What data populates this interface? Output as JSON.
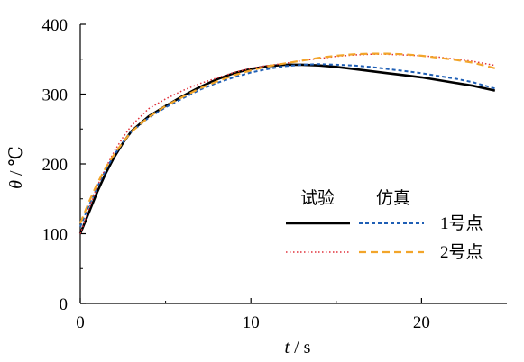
{
  "chart_data": {
    "type": "line",
    "xlabel_var": "t",
    "xlabel_unit": "s",
    "ylabel_var": "θ",
    "ylabel_unit": "℃",
    "xlim": [
      0,
      25
    ],
    "ylim": [
      0,
      400
    ],
    "xticks": [
      0,
      10,
      20
    ],
    "yticks": [
      0,
      100,
      200,
      300,
      400
    ],
    "grid": false,
    "legend": {
      "placement": "bottom-right",
      "col_headers": [
        "试验",
        "仿真"
      ],
      "row_labels": [
        "1号点",
        "2号点"
      ]
    },
    "series": [
      {
        "name": "试验 1号点",
        "color": "#000000",
        "style": "solid",
        "x": [
          0,
          0.5,
          1,
          1.5,
          2,
          2.5,
          3,
          4,
          5,
          6,
          7,
          8,
          9,
          10,
          11,
          12,
          13,
          14,
          15,
          16,
          17,
          18,
          19,
          20,
          21,
          22,
          23,
          24.3
        ],
        "y": [
          100,
          130,
          160,
          187,
          210,
          230,
          247,
          268,
          283,
          297,
          310,
          321,
          330,
          336,
          340,
          342,
          342,
          341,
          339,
          336,
          333,
          330,
          327,
          324,
          320,
          316,
          312,
          305
        ]
      },
      {
        "name": "仿真 1号点",
        "color": "#1f5fb5",
        "style": "dash",
        "x": [
          0,
          0.5,
          1,
          1.5,
          2,
          2.5,
          3,
          4,
          5,
          6,
          7,
          8,
          9,
          10,
          11,
          12,
          13,
          14,
          15,
          16,
          17,
          18,
          19,
          20,
          21,
          22,
          23,
          24.3
        ],
        "y": [
          110,
          140,
          167,
          192,
          213,
          231,
          246,
          266,
          281,
          294,
          306,
          316,
          324,
          331,
          336,
          340,
          342,
          343,
          342,
          341,
          339,
          336,
          333,
          330,
          326,
          322,
          317,
          308
        ]
      },
      {
        "name": "试验 2号点",
        "color": "#e0303a",
        "style": "dot",
        "x": [
          0,
          0.5,
          1,
          1.5,
          2,
          2.5,
          3,
          4,
          5,
          6,
          7,
          8,
          9,
          10,
          11,
          12,
          13,
          14,
          15,
          16,
          17,
          18,
          19,
          20,
          21,
          22,
          23,
          24.3
        ],
        "y": [
          100,
          135,
          168,
          195,
          218,
          238,
          255,
          279,
          293,
          305,
          315,
          323,
          331,
          337,
          341,
          344,
          348,
          351,
          354,
          356,
          357,
          357,
          356,
          355,
          353,
          350,
          347,
          341
        ]
      },
      {
        "name": "仿真 2号点",
        "color": "#f2a52a",
        "style": "longdash",
        "x": [
          0,
          0.5,
          1,
          1.5,
          2,
          2.5,
          3,
          4,
          5,
          6,
          7,
          8,
          9,
          10,
          11,
          12,
          13,
          14,
          15,
          16,
          17,
          18,
          19,
          20,
          21,
          22,
          23,
          24.3
        ],
        "y": [
          115,
          145,
          172,
          195,
          214,
          231,
          246,
          267,
          283,
          296,
          308,
          318,
          327,
          334,
          340,
          344,
          348,
          352,
          355,
          357,
          358,
          358,
          357,
          355,
          352,
          349,
          345,
          337
        ]
      }
    ]
  }
}
